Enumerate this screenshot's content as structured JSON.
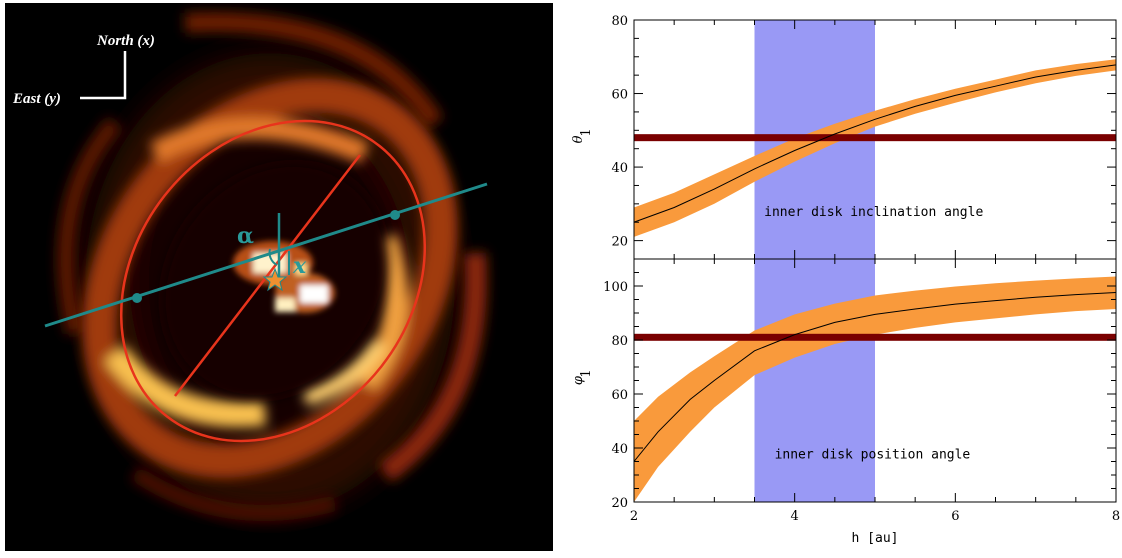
{
  "image_panel": {
    "compass": {
      "north_label": "North (x)",
      "east_label": "East (y)"
    },
    "alpha_label": "α",
    "x_label": "x",
    "colors": {
      "ellipse": "#e8341c",
      "axis_line": "#1f8a8a",
      "disk_core": "#ffd27a"
    }
  },
  "chart_data": [
    {
      "type": "line",
      "ylabel": "θ",
      "ylabel_sub": "1",
      "xlim": [
        2,
        8
      ],
      "ylim": [
        15,
        80
      ],
      "yticks": [
        20,
        40,
        60,
        80
      ],
      "annotation": "inner disk inclination angle",
      "shaded_x_range": [
        3.5,
        5.0
      ],
      "hline": 48,
      "series": [
        {
          "x": [
            2.0,
            2.5,
            3.0,
            3.5,
            4.0,
            4.5,
            5.0,
            5.5,
            6.0,
            6.5,
            7.0,
            7.5,
            8.0
          ],
          "y": [
            25,
            29,
            34,
            39.5,
            44.5,
            49,
            53,
            56.5,
            59.5,
            62,
            64.5,
            66.3,
            67.8
          ],
          "lower": [
            21,
            25,
            30,
            36,
            41.5,
            46.5,
            51,
            54.5,
            57.5,
            60.3,
            62.8,
            64.8,
            66.3
          ],
          "upper": [
            29,
            33,
            38,
            43,
            47.8,
            51.8,
            55.3,
            58.5,
            61.3,
            63.8,
            66.3,
            68,
            69.3
          ]
        }
      ],
      "colors": {
        "band": "#f99a3c",
        "shade": "#9999f5",
        "hline": "#7a0000",
        "line": "#000000"
      }
    },
    {
      "type": "line",
      "ylabel": "φ",
      "ylabel_sub": "1",
      "xlabel": "h [au]",
      "xlim": [
        2,
        8
      ],
      "ylim": [
        20,
        110
      ],
      "xticks": [
        2,
        4,
        6,
        8
      ],
      "yticks": [
        20,
        40,
        60,
        80,
        100
      ],
      "annotation": "inner disk position angle",
      "shaded_x_range": [
        3.5,
        5.0
      ],
      "hline": 81,
      "series": [
        {
          "x": [
            2.0,
            2.3,
            2.7,
            3.0,
            3.5,
            4.0,
            4.5,
            5.0,
            5.5,
            6.0,
            6.5,
            7.0,
            7.5,
            8.0
          ],
          "y": [
            35,
            46,
            58,
            65,
            76,
            82,
            86.5,
            89.5,
            91.5,
            93.3,
            94.6,
            95.8,
            96.8,
            97.6
          ],
          "lower": [
            20,
            33,
            46,
            55,
            67,
            73.5,
            78.5,
            82,
            84.5,
            86.5,
            88,
            89.5,
            90.7,
            91.5
          ],
          "upper": [
            50,
            59,
            68,
            74,
            83.5,
            89.5,
            93.5,
            96.5,
            98.3,
            99.8,
            101,
            102,
            102.8,
            103.5
          ]
        }
      ],
      "colors": {
        "band": "#f99a3c",
        "shade": "#9999f5",
        "hline": "#7a0000",
        "line": "#000000"
      }
    }
  ]
}
